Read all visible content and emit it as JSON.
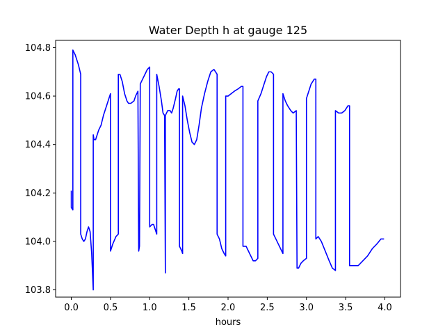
{
  "chart_data": {
    "type": "line",
    "title": "Water Depth h at gauge 125",
    "xlabel": "hours",
    "ylabel": "",
    "xlim": [
      -0.2,
      4.2
    ],
    "ylim": [
      103.77,
      104.83
    ],
    "x_ticks": [
      0.0,
      0.5,
      1.0,
      1.5,
      2.0,
      2.5,
      3.0,
      3.5,
      4.0
    ],
    "x_tick_labels": [
      "0.0",
      "0.5",
      "1.0",
      "1.5",
      "2.0",
      "2.5",
      "3.0",
      "3.5",
      "4.0"
    ],
    "y_ticks": [
      103.8,
      104.0,
      104.2,
      104.4,
      104.6,
      104.8
    ],
    "y_tick_labels": [
      "103.8",
      "104.0",
      "104.2",
      "104.4",
      "104.6",
      "104.8"
    ],
    "grid": false,
    "legend": "none",
    "series": [
      {
        "color": "#0000ff",
        "points": [
          [
            0.0,
            104.21
          ],
          [
            0.0,
            104.14
          ],
          [
            0.02,
            104.13
          ],
          [
            0.02,
            104.79
          ],
          [
            0.05,
            104.77
          ],
          [
            0.09,
            104.73
          ],
          [
            0.12,
            104.69
          ],
          [
            0.12,
            104.03
          ],
          [
            0.14,
            104.01
          ],
          [
            0.16,
            104.0
          ],
          [
            0.18,
            104.01
          ],
          [
            0.2,
            104.04
          ],
          [
            0.22,
            104.06
          ],
          [
            0.24,
            104.04
          ],
          [
            0.26,
            103.95
          ],
          [
            0.28,
            103.8
          ],
          [
            0.28,
            104.44
          ],
          [
            0.29,
            104.42
          ],
          [
            0.31,
            104.42
          ],
          [
            0.33,
            104.44
          ],
          [
            0.35,
            104.46
          ],
          [
            0.38,
            104.48
          ],
          [
            0.41,
            104.52
          ],
          [
            0.45,
            104.56
          ],
          [
            0.48,
            104.59
          ],
          [
            0.5,
            104.61
          ],
          [
            0.5,
            103.96
          ],
          [
            0.53,
            103.99
          ],
          [
            0.57,
            104.02
          ],
          [
            0.6,
            104.03
          ],
          [
            0.6,
            104.69
          ],
          [
            0.62,
            104.69
          ],
          [
            0.65,
            104.66
          ],
          [
            0.68,
            104.61
          ],
          [
            0.71,
            104.58
          ],
          [
            0.73,
            104.57
          ],
          [
            0.76,
            104.57
          ],
          [
            0.8,
            104.58
          ],
          [
            0.82,
            104.6
          ],
          [
            0.85,
            104.62
          ],
          [
            0.86,
            103.96
          ],
          [
            0.87,
            103.98
          ],
          [
            0.88,
            104.65
          ],
          [
            0.91,
            104.67
          ],
          [
            0.94,
            104.69
          ],
          [
            0.97,
            104.71
          ],
          [
            1.0,
            104.72
          ],
          [
            1.0,
            104.06
          ],
          [
            1.03,
            104.07
          ],
          [
            1.05,
            104.07
          ],
          [
            1.07,
            104.05
          ],
          [
            1.09,
            104.03
          ],
          [
            1.09,
            104.69
          ],
          [
            1.12,
            104.64
          ],
          [
            1.15,
            104.58
          ],
          [
            1.17,
            104.53
          ],
          [
            1.19,
            104.52
          ],
          [
            1.2,
            103.87
          ],
          [
            1.2,
            104.52
          ],
          [
            1.23,
            104.54
          ],
          [
            1.26,
            104.54
          ],
          [
            1.28,
            104.53
          ],
          [
            1.3,
            104.55
          ],
          [
            1.33,
            104.59
          ],
          [
            1.35,
            104.62
          ],
          [
            1.37,
            104.63
          ],
          [
            1.38,
            104.63
          ],
          [
            1.38,
            103.98
          ],
          [
            1.41,
            103.96
          ],
          [
            1.42,
            103.95
          ],
          [
            1.42,
            104.6
          ],
          [
            1.45,
            104.56
          ],
          [
            1.48,
            104.5
          ],
          [
            1.51,
            104.45
          ],
          [
            1.54,
            104.41
          ],
          [
            1.57,
            104.4
          ],
          [
            1.6,
            104.42
          ],
          [
            1.63,
            104.48
          ],
          [
            1.66,
            104.55
          ],
          [
            1.7,
            104.61
          ],
          [
            1.74,
            104.66
          ],
          [
            1.78,
            104.7
          ],
          [
            1.82,
            104.71
          ],
          [
            1.86,
            104.69
          ],
          [
            1.86,
            104.03
          ],
          [
            1.89,
            104.01
          ],
          [
            1.92,
            103.97
          ],
          [
            1.95,
            103.95
          ],
          [
            1.97,
            103.94
          ],
          [
            1.97,
            104.6
          ],
          [
            2.0,
            104.6
          ],
          [
            2.04,
            104.61
          ],
          [
            2.08,
            104.62
          ],
          [
            2.13,
            104.63
          ],
          [
            2.17,
            104.64
          ],
          [
            2.19,
            104.64
          ],
          [
            2.19,
            103.98
          ],
          [
            2.23,
            103.98
          ],
          [
            2.26,
            103.96
          ],
          [
            2.29,
            103.94
          ],
          [
            2.32,
            103.92
          ],
          [
            2.35,
            103.92
          ],
          [
            2.38,
            103.93
          ],
          [
            2.38,
            104.58
          ],
          [
            2.42,
            104.61
          ],
          [
            2.46,
            104.65
          ],
          [
            2.49,
            104.68
          ],
          [
            2.52,
            104.7
          ],
          [
            2.55,
            104.7
          ],
          [
            2.58,
            104.69
          ],
          [
            2.58,
            104.03
          ],
          [
            2.61,
            104.01
          ],
          [
            2.64,
            103.99
          ],
          [
            2.67,
            103.97
          ],
          [
            2.7,
            103.95
          ],
          [
            2.7,
            104.61
          ],
          [
            2.73,
            104.58
          ],
          [
            2.76,
            104.56
          ],
          [
            2.8,
            104.54
          ],
          [
            2.83,
            104.53
          ],
          [
            2.87,
            104.54
          ],
          [
            2.88,
            103.89
          ],
          [
            2.9,
            103.89
          ],
          [
            2.93,
            103.91
          ],
          [
            2.96,
            103.92
          ],
          [
            3.0,
            103.93
          ],
          [
            3.0,
            104.59
          ],
          [
            3.03,
            104.62
          ],
          [
            3.06,
            104.65
          ],
          [
            3.1,
            104.67
          ],
          [
            3.12,
            104.67
          ],
          [
            3.12,
            104.01
          ],
          [
            3.15,
            104.02
          ],
          [
            3.19,
            104.0
          ],
          [
            3.24,
            103.96
          ],
          [
            3.29,
            103.92
          ],
          [
            3.33,
            103.89
          ],
          [
            3.37,
            103.88
          ],
          [
            3.37,
            104.54
          ],
          [
            3.41,
            104.53
          ],
          [
            3.45,
            104.53
          ],
          [
            3.49,
            104.54
          ],
          [
            3.53,
            104.56
          ],
          [
            3.55,
            104.56
          ],
          [
            3.55,
            103.9
          ],
          [
            3.6,
            103.9
          ],
          [
            3.66,
            103.9
          ],
          [
            3.72,
            103.92
          ],
          [
            3.78,
            103.94
          ],
          [
            3.84,
            103.97
          ],
          [
            3.9,
            103.99
          ],
          [
            3.95,
            104.01
          ],
          [
            3.99,
            104.01
          ]
        ]
      }
    ]
  }
}
